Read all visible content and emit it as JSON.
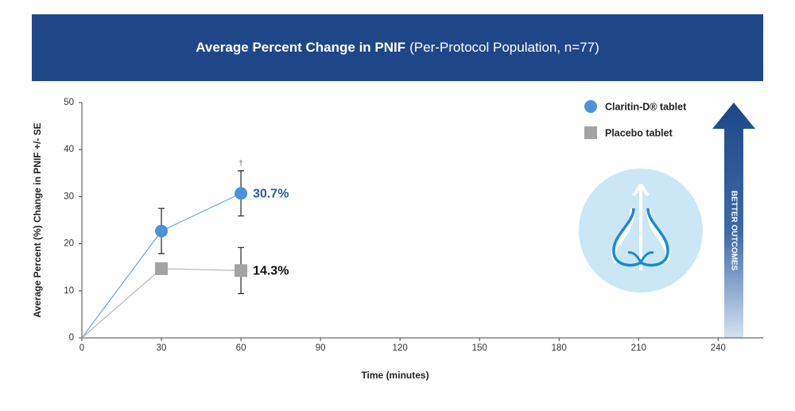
{
  "chart_data": {
    "type": "line",
    "title": "Average Percent Change in PNIF",
    "subtitle": "(Per-Protocol Population, n=77)",
    "x_label": "Time (minutes)",
    "y_label": "Average Percent (%) Change in PNIF +/- SE",
    "x": [
      0,
      30,
      60
    ],
    "xlim": [
      0,
      257
    ],
    "xticks": [
      0,
      30,
      60,
      90,
      120,
      150,
      180,
      210,
      240
    ],
    "ylim": [
      0,
      50
    ],
    "yticks": [
      0,
      10,
      20,
      30,
      40,
      50
    ],
    "series": [
      {
        "name": "Claritin-D® tablet",
        "color": "#4a93d6",
        "line_color": "#6aa8de",
        "marker": "circle",
        "label_color": "#2a5a9c",
        "values": [
          0,
          22.7,
          30.7
        ],
        "errors": [
          null,
          4.8,
          4.8
        ],
        "value_labels": [
          null,
          null,
          "30.7%"
        ]
      },
      {
        "name": "Placebo tablet",
        "color": "#a3a3a3",
        "line_color": "#b5b5b5",
        "marker": "square",
        "label_color": "#111111",
        "values": [
          0,
          14.7,
          14.3
        ],
        "errors": [
          null,
          null,
          4.9
        ],
        "value_labels": [
          null,
          null,
          "14.3%"
        ]
      }
    ],
    "footnote_mark": "†",
    "arrow_label": "BETTER OUTCOMES"
  }
}
